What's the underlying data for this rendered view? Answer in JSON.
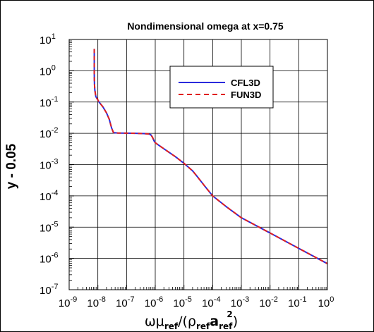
{
  "chart_data": {
    "type": "line",
    "title": "Nondimensional omega at x=0.75",
    "ylabel": "y - 0.05",
    "xlabel": {
      "prefix": "ωμ",
      "sub1": "ref",
      "mid": "/(ρ",
      "sub2": "ref",
      "bold": "a",
      "sub3": "ref",
      "sup": "2",
      "suffix": ")"
    },
    "x_scale": "log",
    "y_scale": "log",
    "xlim": [
      1e-09,
      1
    ],
    "ylim": [
      1e-07,
      10
    ],
    "x_ticks": [
      {
        "base": "10",
        "exp": "-9"
      },
      {
        "base": "10",
        "exp": "-8"
      },
      {
        "base": "10",
        "exp": "-7"
      },
      {
        "base": "10",
        "exp": "-6"
      },
      {
        "base": "10",
        "exp": "-5"
      },
      {
        "base": "10",
        "exp": "-4"
      },
      {
        "base": "10",
        "exp": "-3"
      },
      {
        "base": "10",
        "exp": "-2"
      },
      {
        "base": "10",
        "exp": "-1"
      },
      {
        "base": "10",
        "exp": "0"
      }
    ],
    "y_ticks": [
      {
        "base": "10",
        "exp": "-7"
      },
      {
        "base": "10",
        "exp": "-6"
      },
      {
        "base": "10",
        "exp": "-5"
      },
      {
        "base": "10",
        "exp": "-4"
      },
      {
        "base": "10",
        "exp": "-3"
      },
      {
        "base": "10",
        "exp": "-2"
      },
      {
        "base": "10",
        "exp": "-1"
      },
      {
        "base": "10",
        "exp": "0"
      },
      {
        "base": "10",
        "exp": "1"
      }
    ],
    "grid": true,
    "legend_position": "upper-right",
    "series": [
      {
        "name": "CFL3D",
        "color": "#2b2bdc",
        "style": "solid",
        "points": [
          [
            7.5e-09,
            5.0
          ],
          [
            7.5e-09,
            2.0
          ],
          [
            7.5e-09,
            0.8
          ],
          [
            7.6e-09,
            0.4
          ],
          [
            7.8e-09,
            0.25
          ],
          [
            8.5e-09,
            0.15
          ],
          [
            1.1e-08,
            0.1
          ],
          [
            1.5e-08,
            0.07
          ],
          [
            2e-08,
            0.045
          ],
          [
            2.5e-08,
            0.028
          ],
          [
            3e-08,
            0.015
          ],
          [
            3.5e-08,
            0.0105
          ],
          [
            5e-08,
            0.0102
          ],
          [
            1e-07,
            0.0101
          ],
          [
            2e-07,
            0.01
          ],
          [
            4e-07,
            0.0098
          ],
          [
            6e-07,
            0.0095
          ],
          [
            7e-07,
            0.009
          ],
          [
            8e-07,
            0.0075
          ],
          [
            9e-07,
            0.0058
          ],
          [
            1e-06,
            0.005
          ],
          [
            1.3e-06,
            0.0042
          ],
          [
            2e-06,
            0.0032
          ],
          [
            5e-06,
            0.0018
          ],
          [
            1e-05,
            0.0011
          ],
          [
            2e-05,
            0.00063
          ],
          [
            3e-05,
            0.0004
          ],
          [
            5e-05,
            0.00022
          ],
          [
            0.0001,
            0.0001
          ],
          [
            0.0003,
            4.5e-05
          ],
          [
            0.001,
            2e-05
          ],
          [
            0.01,
            6.5e-06
          ],
          [
            0.1,
            2.1e-06
          ],
          [
            1.0,
            6.8e-07
          ]
        ]
      },
      {
        "name": "FUN3D",
        "color": "#e01f1f",
        "style": "dashed",
        "points": [
          [
            7.5e-09,
            5.0
          ],
          [
            7.5e-09,
            2.0
          ],
          [
            7.5e-09,
            0.8
          ],
          [
            7.6e-09,
            0.4
          ],
          [
            7.8e-09,
            0.25
          ],
          [
            8.5e-09,
            0.15
          ],
          [
            1.1e-08,
            0.1
          ],
          [
            1.5e-08,
            0.07
          ],
          [
            2e-08,
            0.045
          ],
          [
            2.5e-08,
            0.028
          ],
          [
            3e-08,
            0.015
          ],
          [
            3.5e-08,
            0.0105
          ],
          [
            5e-08,
            0.0102
          ],
          [
            1e-07,
            0.0101
          ],
          [
            2e-07,
            0.01
          ],
          [
            4e-07,
            0.0098
          ],
          [
            6e-07,
            0.0095
          ],
          [
            7e-07,
            0.009
          ],
          [
            8e-07,
            0.0075
          ],
          [
            9e-07,
            0.0058
          ],
          [
            1e-06,
            0.005
          ],
          [
            1.3e-06,
            0.0042
          ],
          [
            2e-06,
            0.0032
          ],
          [
            5e-06,
            0.0018
          ],
          [
            1e-05,
            0.0011
          ],
          [
            2e-05,
            0.00063
          ],
          [
            3e-05,
            0.0004
          ],
          [
            5e-05,
            0.00022
          ],
          [
            0.0001,
            0.0001
          ],
          [
            0.0003,
            4.5e-05
          ],
          [
            0.001,
            2e-05
          ],
          [
            0.01,
            6.5e-06
          ],
          [
            0.1,
            2.1e-06
          ],
          [
            1.0,
            6.8e-07
          ]
        ]
      }
    ]
  }
}
